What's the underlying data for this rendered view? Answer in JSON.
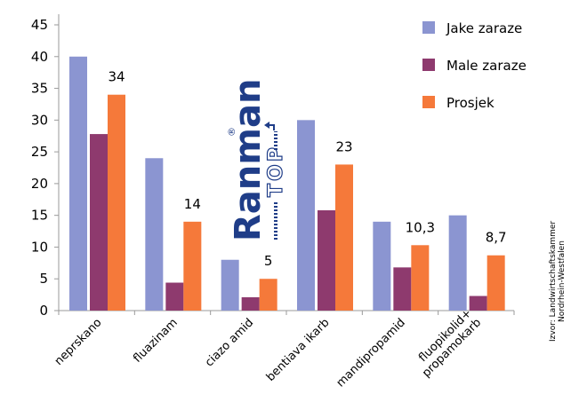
{
  "chart_data": {
    "type": "bar",
    "categories": [
      "neprskano",
      "fluazinam",
      "ciazo amid",
      "bentiava ikarb",
      "mandipropamid",
      [
        "fluopikolid+",
        "propamokarb"
      ]
    ],
    "series": [
      {
        "name": "Jake zaraze",
        "color": "#8b95d1",
        "values": [
          40,
          24,
          8,
          30,
          14,
          15
        ]
      },
      {
        "name": "Male zaraze",
        "color": "#8e3a6e",
        "values": [
          27.8,
          4.4,
          2.1,
          15.8,
          6.8,
          2.3
        ]
      },
      {
        "name": "Prosjek",
        "color": "#f5793a",
        "values": [
          34,
          14,
          5,
          23,
          10.3,
          8.7
        ]
      }
    ],
    "data_labels": [
      "34",
      "14",
      "5",
      "23",
      "10,3",
      "8,7"
    ],
    "ylim": [
      0,
      45
    ],
    "yticks": [
      0,
      5,
      10,
      15,
      20,
      25,
      30,
      35,
      40,
      45
    ],
    "grid": false,
    "legend_position": "right"
  },
  "source_lines": [
    "Izvor: Landwirtschaftskammer",
    "Nordrhein-Westfalen"
  ],
  "logo": {
    "name": "Ranman",
    "suffix": "TOP",
    "mark": "®"
  }
}
